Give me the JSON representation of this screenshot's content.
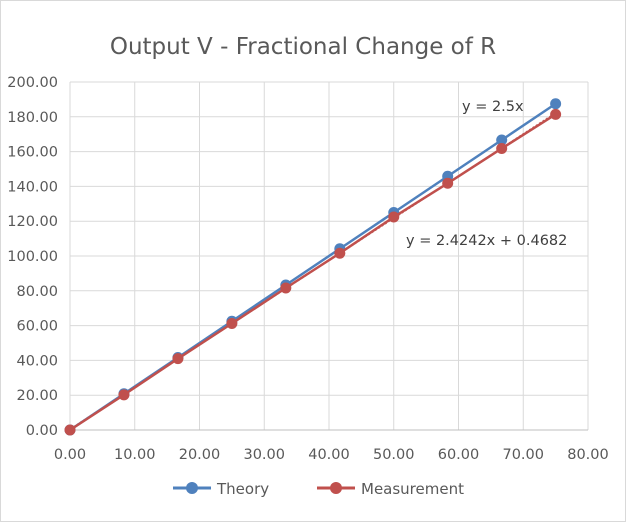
{
  "chart_data": {
    "type": "scatter",
    "title": "Output V - Fractional Change of R",
    "xlabel": "",
    "ylabel": "",
    "xlim": [
      0,
      80
    ],
    "ylim": [
      0,
      200
    ],
    "x_ticks": [
      "0.00",
      "10.00",
      "20.00",
      "30.00",
      "40.00",
      "50.00",
      "60.00",
      "70.00",
      "80.00"
    ],
    "y_ticks": [
      "0.00",
      "20.00",
      "40.00",
      "60.00",
      "80.00",
      "100.00",
      "120.00",
      "140.00",
      "160.00",
      "180.00",
      "200.00"
    ],
    "grid": true,
    "legend_position": "bottom",
    "series": [
      {
        "name": "Theory",
        "color": "#4f81bd",
        "x": [
          0,
          8.33,
          16.67,
          25.0,
          33.33,
          41.67,
          50.0,
          58.33,
          66.67,
          75.0
        ],
        "y": [
          0,
          20.83,
          41.67,
          62.5,
          83.33,
          104.17,
          125.0,
          145.83,
          166.67,
          187.5
        ]
      },
      {
        "name": "Measurement",
        "color": "#c0504d",
        "x": [
          0,
          8.33,
          16.67,
          25.0,
          33.33,
          41.67,
          50.0,
          58.33,
          66.67,
          75.0
        ],
        "y": [
          0,
          20.2,
          41.0,
          61.2,
          81.6,
          101.6,
          122.4,
          141.8,
          161.8,
          181.4
        ]
      }
    ],
    "trendlines": [
      {
        "series": "Theory",
        "slope": 2.5,
        "intercept": 0,
        "label": "y = 2.5x"
      },
      {
        "series": "Measurement",
        "slope": 2.4242,
        "intercept": 0.4682,
        "label": "y = 2.4242x + 0.4682"
      }
    ]
  }
}
